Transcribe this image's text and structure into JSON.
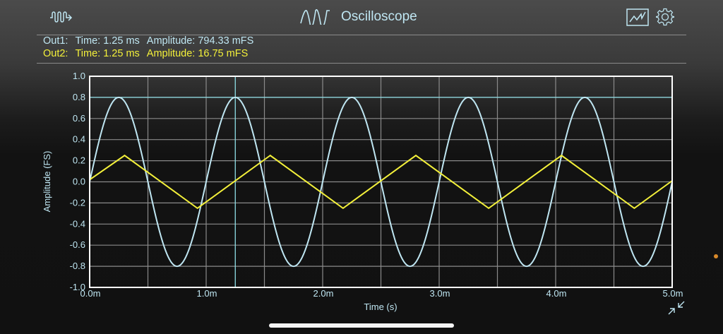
{
  "header": {
    "title": "Oscilloscope",
    "left_icon": "waveform-arrow-icon",
    "title_icon": "sine-wave-icon",
    "right_icons": [
      "chart-view-icon",
      "gear-icon"
    ]
  },
  "readouts": [
    {
      "channel": "Out1:",
      "time": "Time: 1.25 ms",
      "amplitude": "Amplitude: 794.33 mFS",
      "color": "#bfe6f2"
    },
    {
      "channel": "Out2:",
      "time": "Time: 1.25 ms",
      "amplitude": "Amplitude: 16.75 mFS",
      "color": "#f3f03a"
    }
  ],
  "colors": {
    "out1": "#bfe6f2",
    "out2": "#f3f03a",
    "cursor": "#8fe0e8",
    "grid": "#8a8a8a",
    "frame": "#ffffff",
    "accent_dot": "#d8892a"
  },
  "chart_data": {
    "type": "line",
    "title": "",
    "xlabel": "Time (s)",
    "ylabel": "Amplitude (FS)",
    "xlim": [
      0,
      5.0
    ],
    "x_unit": "ms",
    "ylim": [
      -1.0,
      1.0
    ],
    "x_ticks": [
      "0.0m",
      "1.0m",
      "2.0m",
      "3.0m",
      "4.0m",
      "5.0m"
    ],
    "y_ticks": [
      "1.0",
      "0.8",
      "0.6",
      "0.4",
      "0.2",
      "0.0",
      "-0.2",
      "-0.4",
      "-0.6",
      "-0.8",
      "-1.0"
    ],
    "grid": true,
    "x_grid_step_ms": 0.5,
    "y_grid_step": 0.2,
    "cursor": {
      "time_ms": 1.25,
      "level": 0.8
    },
    "series": [
      {
        "name": "Out1",
        "shape": "sine",
        "amplitude": 0.8,
        "period_ms": 1.0,
        "phase_ms": 0.0,
        "offset": 0.0,
        "x": [
          0,
          0.25,
          0.5,
          0.75,
          1.0,
          1.25,
          1.5,
          1.75,
          2.0,
          2.25,
          2.5,
          2.75,
          3.0,
          3.25,
          3.5,
          3.75,
          4.0,
          4.25,
          4.5,
          4.75,
          5.0
        ],
        "values": [
          0,
          0.8,
          0,
          -0.8,
          0,
          0.8,
          0,
          -0.8,
          0,
          0.8,
          0,
          -0.8,
          0,
          0.8,
          0,
          -0.8,
          0,
          0.8,
          0,
          -0.8,
          0
        ]
      },
      {
        "name": "Out2",
        "shape": "triangle",
        "amplitude": 0.25,
        "period_ms": 1.25,
        "offset": 0.0,
        "x": [
          0,
          0.3,
          0.925,
          1.55,
          2.175,
          2.8,
          3.425,
          4.05,
          4.675,
          5.0
        ],
        "values": [
          0.02,
          0.25,
          -0.25,
          0.25,
          -0.25,
          0.25,
          -0.25,
          0.25,
          -0.25,
          0.01
        ]
      }
    ]
  }
}
